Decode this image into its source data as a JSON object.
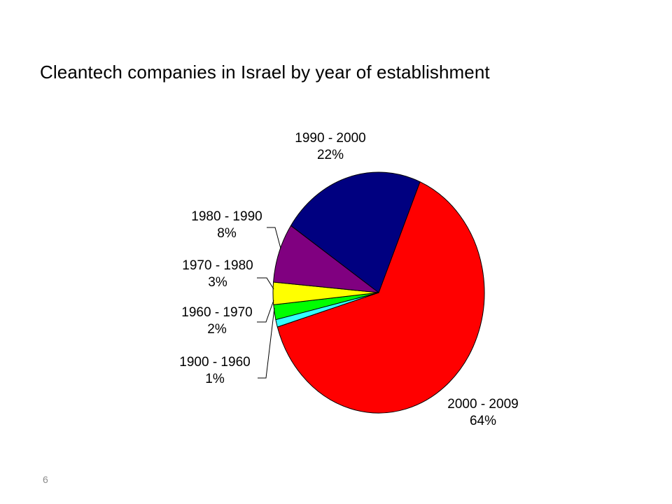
{
  "slide": {
    "title": "Cleantech companies in Israel by year of establishment",
    "page_number": "6"
  },
  "chart_data": {
    "type": "pie",
    "title": "Cleantech companies in Israel by year of establishment",
    "slices": [
      {
        "label": "2000 - 2009",
        "value": 64,
        "value_label": "64%",
        "color": "#ff0000"
      },
      {
        "label": "1900 - 1960",
        "value": 1,
        "value_label": "1%",
        "color": "#33ffff"
      },
      {
        "label": "1960 - 1970",
        "value": 2,
        "value_label": "2%",
        "color": "#00ff00"
      },
      {
        "label": "1970 - 1980",
        "value": 3,
        "value_label": "3%",
        "color": "#ffff00"
      },
      {
        "label": "1980 - 1990",
        "value": 8,
        "value_label": "8%",
        "color": "#800080"
      },
      {
        "label": "1990 - 2000",
        "value": 22,
        "value_label": "22%",
        "color": "#000080"
      }
    ],
    "legend": "none",
    "grid": false
  }
}
